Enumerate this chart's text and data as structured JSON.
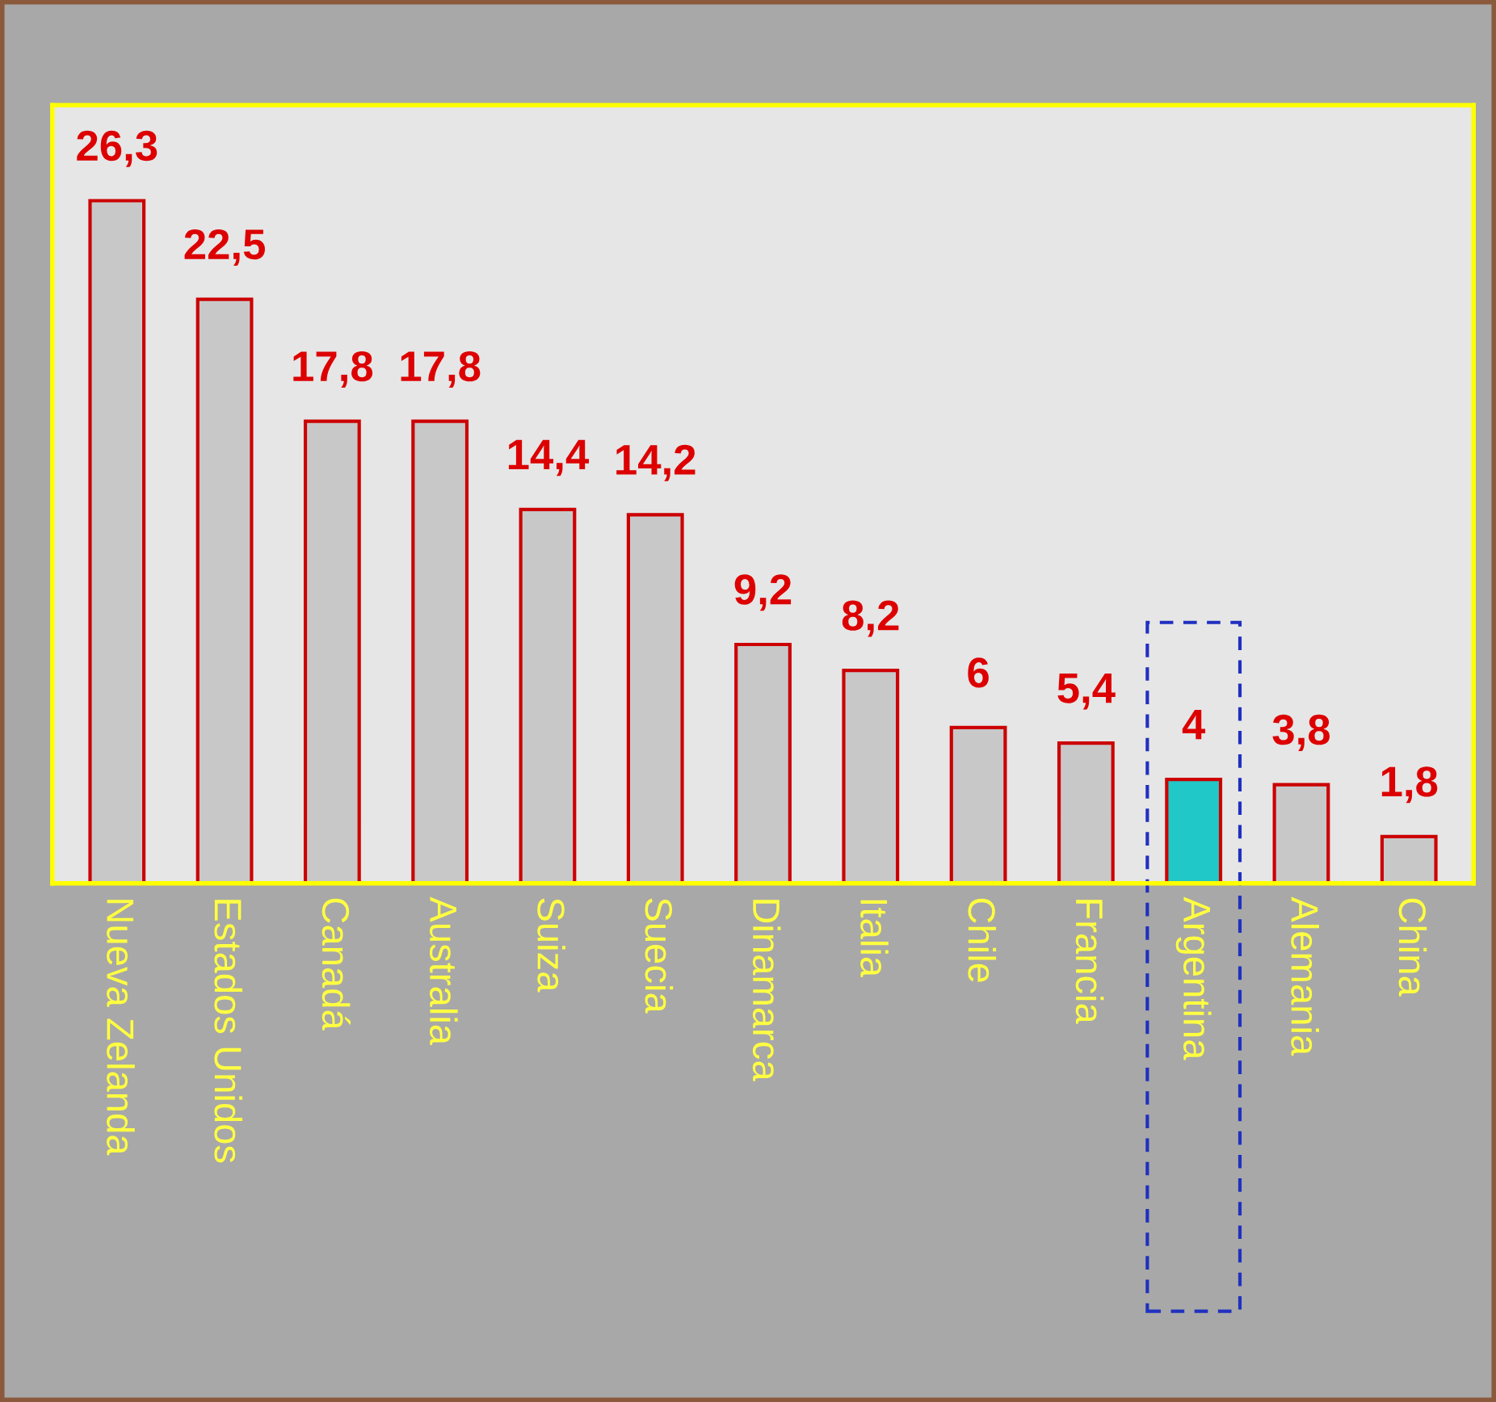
{
  "chart_data": {
    "type": "bar",
    "categories": [
      "Nueva Zelanda",
      "Estados Unidos",
      "Canadá",
      "Australia",
      "Suiza",
      "Suecia",
      "Dinamarca",
      "Italia",
      "Chile",
      "Francia",
      "Argentina",
      "Alemania",
      "China"
    ],
    "values": [
      26.3,
      22.5,
      17.8,
      17.8,
      14.4,
      14.2,
      9.2,
      8.2,
      6,
      5.4,
      4,
      3.8,
      1.8
    ],
    "value_labels": [
      "26,3",
      "22,5",
      "17,8",
      "17,8",
      "14,4",
      "14,2",
      "9,2",
      "8,2",
      "6",
      "5,4",
      "4",
      "3,8",
      "1,8"
    ],
    "colors": [
      "#c8c8c8",
      "#c8c8c8",
      "#c8c8c8",
      "#c8c8c8",
      "#c8c8c8",
      "#c8c8c8",
      "#c8c8c8",
      "#c8c8c8",
      "#c8c8c8",
      "#c8c8c8",
      "#20c8c8",
      "#c8c8c8",
      "#c8c8c8"
    ],
    "grid": false,
    "legend": false
  }
}
